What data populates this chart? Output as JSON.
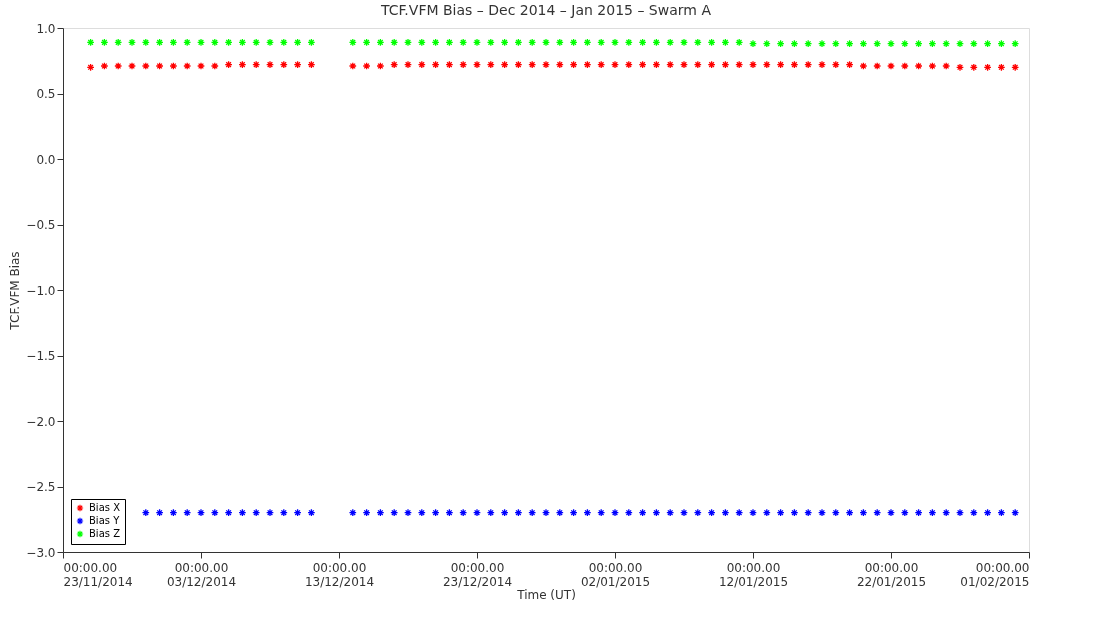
{
  "chart_data": {
    "type": "scatter",
    "title": "TCF.VFM Bias – Dec 2014 – Jan 2015 – Swarm A",
    "xlabel": "Time (UT)",
    "ylabel": "TCF.VFM Bias",
    "x": [
      "2014-11-25",
      "2014-11-26",
      "2014-11-27",
      "2014-11-28",
      "2014-11-29",
      "2014-11-30",
      "2014-12-01",
      "2014-12-02",
      "2014-12-03",
      "2014-12-04",
      "2014-12-05",
      "2014-12-06",
      "2014-12-07",
      "2014-12-08",
      "2014-12-09",
      "2014-12-10",
      "2014-12-11",
      "2014-12-14",
      "2014-12-15",
      "2014-12-16",
      "2014-12-17",
      "2014-12-18",
      "2014-12-19",
      "2014-12-20",
      "2014-12-21",
      "2014-12-22",
      "2014-12-23",
      "2014-12-24",
      "2014-12-25",
      "2014-12-26",
      "2014-12-27",
      "2014-12-28",
      "2014-12-29",
      "2014-12-30",
      "2014-12-31",
      "2015-01-01",
      "2015-01-02",
      "2015-01-03",
      "2015-01-04",
      "2015-01-05",
      "2015-01-06",
      "2015-01-07",
      "2015-01-08",
      "2015-01-09",
      "2015-01-10",
      "2015-01-11",
      "2015-01-12",
      "2015-01-13",
      "2015-01-14",
      "2015-01-15",
      "2015-01-16",
      "2015-01-17",
      "2015-01-18",
      "2015-01-19",
      "2015-01-20",
      "2015-01-21",
      "2015-01-22",
      "2015-01-23",
      "2015-01-24",
      "2015-01-25",
      "2015-01-26",
      "2015-01-27",
      "2015-01-28",
      "2015-01-29",
      "2015-01-30",
      "2015-01-31"
    ],
    "series": [
      {
        "name": "Bias X",
        "color": "#ff0000",
        "values": [
          0.7,
          0.71,
          0.71,
          0.71,
          0.71,
          0.71,
          0.71,
          0.71,
          0.71,
          0.71,
          0.72,
          0.72,
          0.72,
          0.72,
          0.72,
          0.72,
          0.72,
          0.71,
          0.71,
          0.71,
          0.72,
          0.72,
          0.72,
          0.72,
          0.72,
          0.72,
          0.72,
          0.72,
          0.72,
          0.72,
          0.72,
          0.72,
          0.72,
          0.72,
          0.72,
          0.72,
          0.72,
          0.72,
          0.72,
          0.72,
          0.72,
          0.72,
          0.72,
          0.72,
          0.72,
          0.72,
          0.72,
          0.72,
          0.72,
          0.72,
          0.72,
          0.72,
          0.72,
          0.72,
          0.71,
          0.71,
          0.71,
          0.71,
          0.71,
          0.71,
          0.71,
          0.7,
          0.7,
          0.7,
          0.7,
          0.7
        ]
      },
      {
        "name": "Bias Y",
        "color": "#0000ff",
        "values": [
          null,
          null,
          null,
          null,
          -2.7,
          -2.7,
          -2.7,
          -2.7,
          -2.7,
          -2.7,
          -2.7,
          -2.7,
          -2.7,
          -2.7,
          -2.7,
          -2.7,
          -2.7,
          -2.7,
          -2.7,
          -2.7,
          -2.7,
          -2.7,
          -2.7,
          -2.7,
          -2.7,
          -2.7,
          -2.7,
          -2.7,
          -2.7,
          -2.7,
          -2.7,
          -2.7,
          -2.7,
          -2.7,
          -2.7,
          -2.7,
          -2.7,
          -2.7,
          -2.7,
          -2.7,
          -2.7,
          -2.7,
          -2.7,
          -2.7,
          -2.7,
          -2.7,
          -2.7,
          -2.7,
          -2.7,
          -2.7,
          -2.7,
          -2.7,
          -2.7,
          -2.7,
          -2.7,
          -2.7,
          -2.7,
          -2.7,
          -2.7,
          -2.7,
          -2.7,
          -2.7,
          -2.7,
          -2.7,
          -2.7,
          -2.7
        ]
      },
      {
        "name": "Bias Z",
        "color": "#00ff00",
        "values": [
          0.89,
          0.89,
          0.89,
          0.89,
          0.89,
          0.89,
          0.89,
          0.89,
          0.89,
          0.89,
          0.89,
          0.89,
          0.89,
          0.89,
          0.89,
          0.89,
          0.89,
          0.89,
          0.89,
          0.89,
          0.89,
          0.89,
          0.89,
          0.89,
          0.89,
          0.89,
          0.89,
          0.89,
          0.89,
          0.89,
          0.89,
          0.89,
          0.89,
          0.89,
          0.89,
          0.89,
          0.89,
          0.89,
          0.89,
          0.89,
          0.89,
          0.89,
          0.89,
          0.89,
          0.89,
          0.89,
          0.88,
          0.88,
          0.88,
          0.88,
          0.88,
          0.88,
          0.88,
          0.88,
          0.88,
          0.88,
          0.88,
          0.88,
          0.88,
          0.88,
          0.88,
          0.88,
          0.88,
          0.88,
          0.88,
          0.88
        ]
      }
    ],
    "xlim": [
      "2014-11-23",
      "2015-02-01"
    ],
    "xticks": [
      {
        "value": "2014-11-23",
        "label": "00:00.00\n23/11/2014"
      },
      {
        "value": "2014-12-03",
        "label": "00:00.00\n03/12/2014"
      },
      {
        "value": "2014-12-13",
        "label": "00:00.00\n13/12/2014"
      },
      {
        "value": "2014-12-23",
        "label": "00:00.00\n23/12/2014"
      },
      {
        "value": "2015-01-02",
        "label": "00:00.00\n02/01/2015"
      },
      {
        "value": "2015-01-12",
        "label": "00:00.00\n12/01/2015"
      },
      {
        "value": "2015-01-22",
        "label": "00:00.00\n22/01/2015"
      },
      {
        "value": "2015-02-01",
        "label": "00:00.00\n01/02/2015"
      }
    ],
    "ylim": [
      -3.0,
      1.0
    ],
    "yticks": [
      {
        "value": -3.0,
        "label": "−3.0"
      },
      {
        "value": -2.5,
        "label": "−2.5"
      },
      {
        "value": -2.0,
        "label": "−2.0"
      },
      {
        "value": -1.5,
        "label": "−1.5"
      },
      {
        "value": -1.0,
        "label": "−1.0"
      },
      {
        "value": -0.5,
        "label": "−0.5"
      },
      {
        "value": 0.0,
        "label": "0.0"
      },
      {
        "value": 0.5,
        "label": "0.5"
      },
      {
        "value": 1.0,
        "label": "1.0"
      }
    ],
    "grid": false,
    "legend": "bottom left",
    "marker": "cross"
  }
}
